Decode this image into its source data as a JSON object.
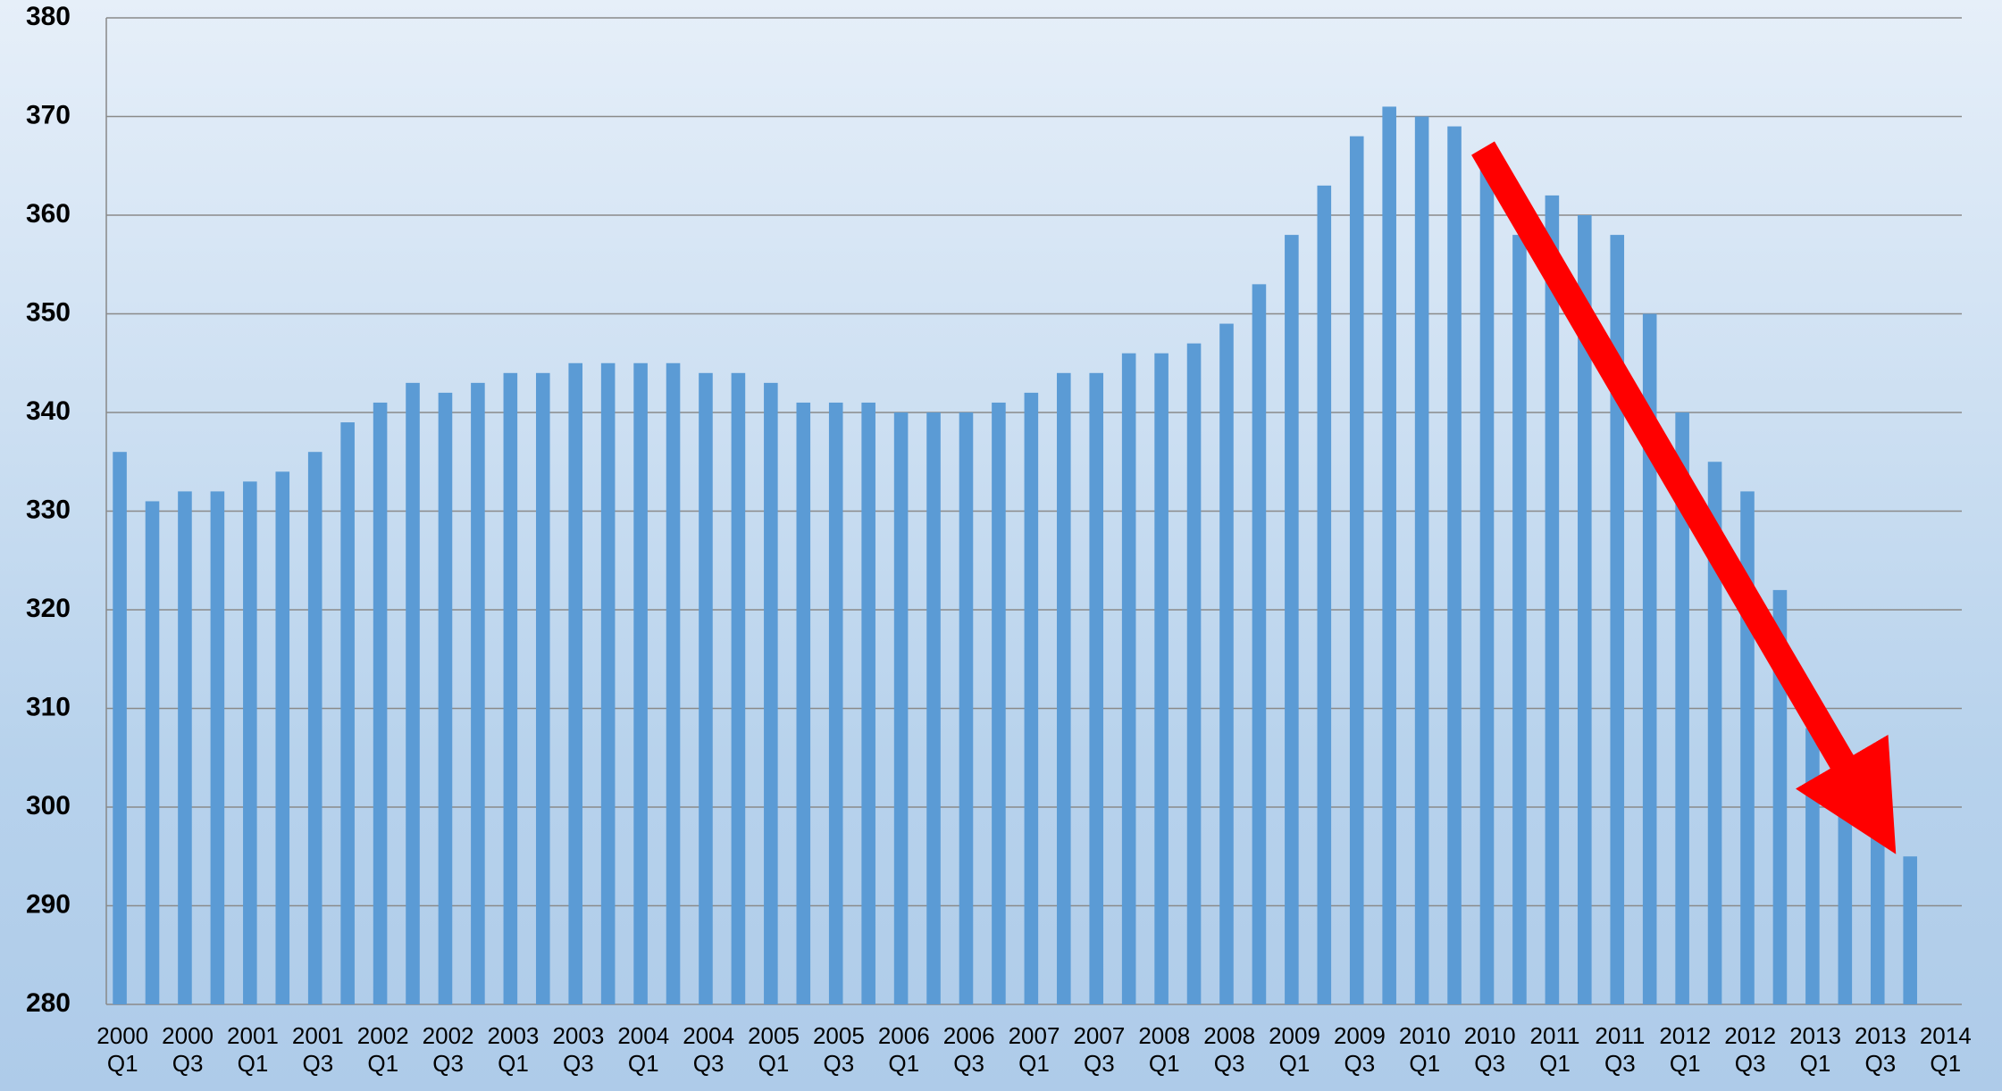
{
  "chart_data": {
    "type": "bar",
    "categories": [
      "2000\nQ1",
      null,
      "2000\nQ3",
      null,
      "2001\nQ1",
      null,
      "2001\nQ3",
      null,
      "2002\nQ1",
      null,
      "2002\nQ3",
      null,
      "2003\nQ1",
      null,
      "2003\nQ3",
      null,
      "2004\nQ1",
      null,
      "2004\nQ3",
      null,
      "2005\nQ1",
      null,
      "2005\nQ3",
      null,
      "2006\nQ1",
      null,
      "2006\nQ3",
      null,
      "2007\nQ1",
      null,
      "2007\nQ3",
      null,
      "2008\nQ1",
      null,
      "2008\nQ3",
      null,
      "2009\nQ1",
      null,
      "2009\nQ3",
      null,
      "2010\nQ1",
      null,
      "2010\nQ3",
      null,
      "2011\nQ1",
      null,
      "2011\nQ3",
      null,
      "2012\nQ1",
      null,
      "2012\nQ3",
      null,
      "2013\nQ1",
      null,
      "2013\nQ3",
      null,
      "2014\nQ1"
    ],
    "values": [
      336,
      331,
      332,
      332,
      333,
      334,
      336,
      339,
      341,
      343,
      342,
      343,
      344,
      344,
      345,
      345,
      345,
      345,
      344,
      344,
      343,
      341,
      341,
      341,
      340,
      340,
      340,
      341,
      342,
      344,
      344,
      346,
      346,
      347,
      349,
      353,
      358,
      363,
      368,
      371,
      370,
      369,
      365,
      358,
      362,
      360,
      358,
      350,
      340,
      335,
      332,
      322,
      308,
      305,
      300,
      295,
      null
    ],
    "color": "#5b9bd5",
    "ylim": [
      280,
      380
    ],
    "yticks": [
      280,
      290,
      300,
      310,
      320,
      330,
      340,
      350,
      360,
      370,
      380
    ],
    "grid": true
  }
}
